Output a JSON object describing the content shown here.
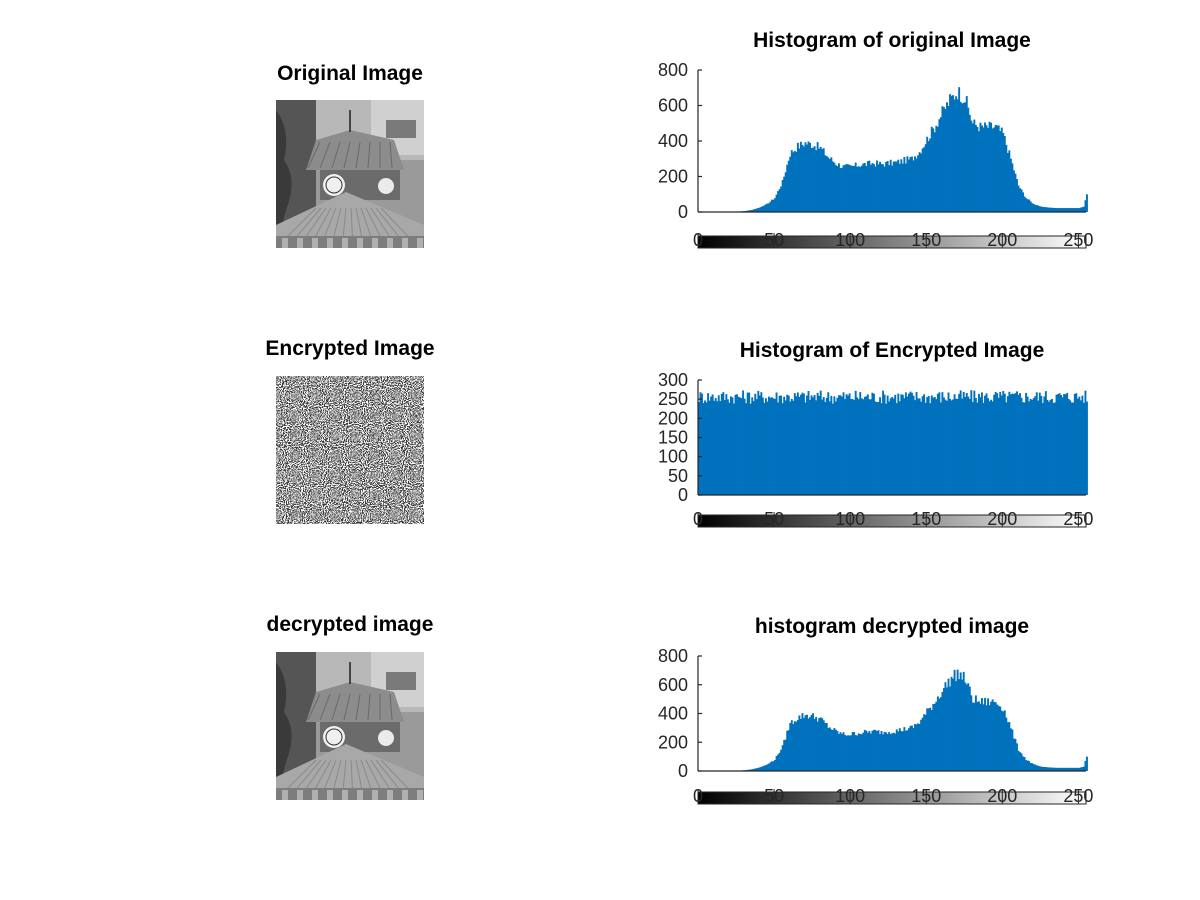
{
  "colors": {
    "bar": "#0072BD",
    "axis": "#262626",
    "background": "#ffffff"
  },
  "images": [
    {
      "title": "Original Image",
      "kind": "photo"
    },
    {
      "title": "Encrypted Image",
      "kind": "noise"
    },
    {
      "title": "decrypted image",
      "kind": "photo"
    }
  ],
  "chart_data": [
    {
      "type": "bar",
      "title": "Histogram of original Image",
      "xlim": [
        0,
        255
      ],
      "ylim": [
        0,
        800
      ],
      "yticks": [
        0,
        200,
        400,
        600,
        800
      ],
      "xticks": [
        0,
        50,
        100,
        150,
        200,
        250
      ],
      "colorbar": "gray",
      "x": [
        0,
        10,
        20,
        25,
        30,
        35,
        40,
        45,
        50,
        55,
        60,
        65,
        70,
        75,
        80,
        85,
        90,
        95,
        100,
        105,
        110,
        115,
        120,
        125,
        130,
        135,
        140,
        145,
        150,
        155,
        160,
        165,
        170,
        175,
        180,
        185,
        190,
        195,
        200,
        205,
        210,
        215,
        220,
        225,
        230,
        235,
        240,
        245,
        250,
        253,
        254,
        255
      ],
      "values": [
        0,
        0,
        0,
        2,
        5,
        12,
        25,
        45,
        80,
        170,
        330,
        370,
        390,
        380,
        360,
        310,
        275,
        255,
        255,
        265,
        270,
        275,
        270,
        275,
        280,
        290,
        300,
        340,
        410,
        480,
        560,
        630,
        680,
        640,
        500,
        480,
        480,
        480,
        440,
        300,
        150,
        80,
        45,
        30,
        25,
        22,
        22,
        22,
        22,
        30,
        70,
        100
      ]
    },
    {
      "type": "bar",
      "title": "Histogram of Encrypted Image",
      "xlim": [
        0,
        255
      ],
      "ylim": [
        0,
        300
      ],
      "yticks": [
        0,
        50,
        100,
        150,
        200,
        250,
        300
      ],
      "xticks": [
        0,
        50,
        100,
        150,
        200,
        250
      ],
      "colorbar": "gray",
      "x": [
        0,
        255
      ],
      "values": [
        256,
        256
      ]
    },
    {
      "type": "bar",
      "title": "histogram decrypted image",
      "xlim": [
        0,
        255
      ],
      "ylim": [
        0,
        800
      ],
      "yticks": [
        0,
        200,
        400,
        600,
        800
      ],
      "xticks": [
        0,
        50,
        100,
        150,
        200,
        250
      ],
      "colorbar": "gray",
      "x": [
        0,
        10,
        20,
        25,
        30,
        35,
        40,
        45,
        50,
        55,
        60,
        65,
        70,
        75,
        80,
        85,
        90,
        95,
        100,
        105,
        110,
        115,
        120,
        125,
        130,
        135,
        140,
        145,
        150,
        155,
        160,
        165,
        170,
        175,
        180,
        185,
        190,
        195,
        200,
        205,
        210,
        215,
        220,
        225,
        230,
        235,
        240,
        245,
        250,
        253,
        254,
        255
      ],
      "values": [
        0,
        0,
        0,
        2,
        5,
        12,
        25,
        45,
        80,
        170,
        330,
        370,
        390,
        380,
        360,
        310,
        275,
        255,
        255,
        265,
        270,
        275,
        270,
        275,
        280,
        290,
        300,
        340,
        410,
        480,
        560,
        630,
        680,
        640,
        500,
        480,
        480,
        480,
        440,
        300,
        150,
        80,
        45,
        30,
        25,
        22,
        22,
        22,
        22,
        30,
        70,
        100
      ]
    }
  ]
}
